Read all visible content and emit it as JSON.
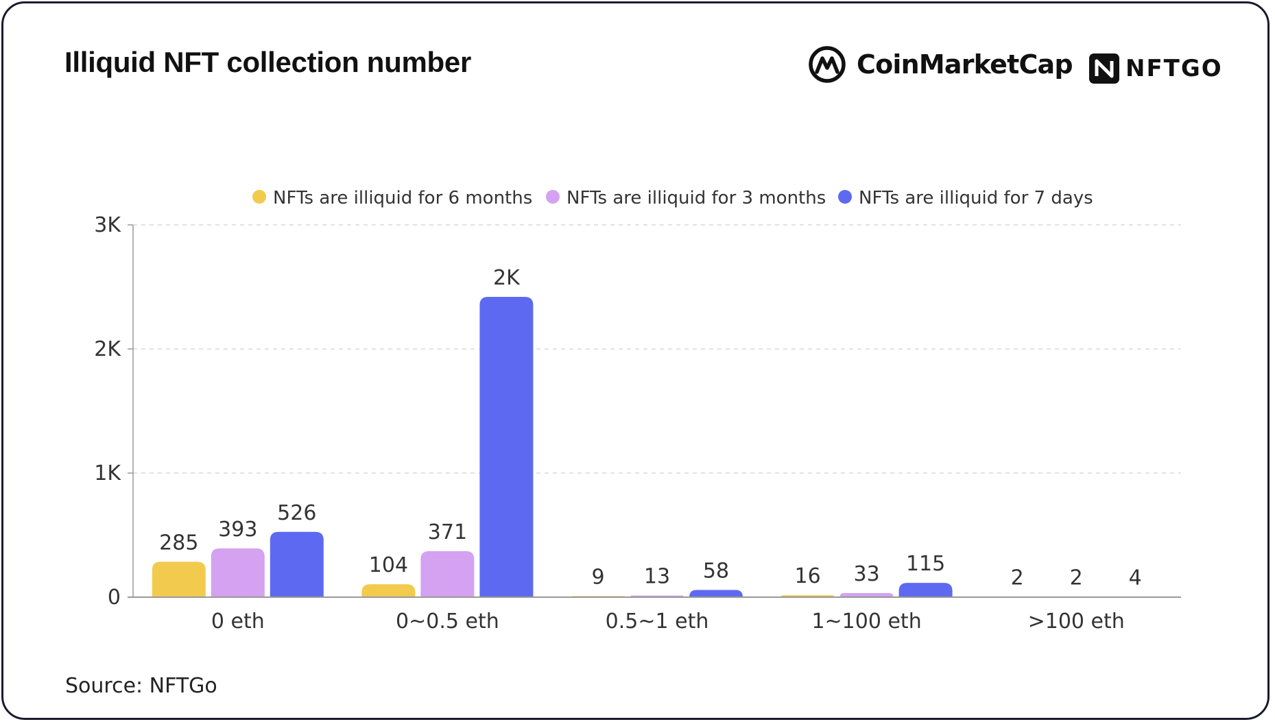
{
  "header": {
    "title": "Illiquid NFT collection number",
    "brand_primary": "CoinMarketCap",
    "brand_secondary": "NFTGO"
  },
  "footer": {
    "source": "Source: NFTGo"
  },
  "colors": {
    "series_6m": "#F2CB4E",
    "series_3m": "#D4A2F0",
    "series_7d": "#5E69F1",
    "axis": "#999999",
    "grid": "#d8d8d8",
    "text": "#333333"
  },
  "chart_data": {
    "type": "bar",
    "title": "Illiquid NFT collection number",
    "xlabel": "",
    "ylabel": "",
    "ylim": [
      0,
      3000
    ],
    "y_ticks": [
      0,
      1000,
      2000,
      3000
    ],
    "y_tick_labels": [
      "0",
      "1K",
      "2K",
      "3K"
    ],
    "grid": true,
    "legend_position": "top-center",
    "categories": [
      "0 eth",
      "0~0.5 eth",
      "0.5~1 eth",
      "1~100 eth",
      ">100 eth"
    ],
    "series": [
      {
        "name": "NFTs are illiquid for 6 months",
        "color": "#F2CB4E",
        "values": [
          285,
          104,
          9,
          16,
          2
        ],
        "labels": [
          "285",
          "104",
          "9",
          "16",
          "2"
        ]
      },
      {
        "name": "NFTs are illiquid for 3 months",
        "color": "#D4A2F0",
        "values": [
          393,
          371,
          13,
          33,
          2
        ],
        "labels": [
          "393",
          "371",
          "13",
          "33",
          "2"
        ]
      },
      {
        "name": "NFTs are illiquid for 7 days",
        "color": "#5E69F1",
        "values": [
          526,
          2420,
          58,
          115,
          4
        ],
        "labels": [
          "526",
          "2K",
          "58",
          "115",
          "4"
        ]
      }
    ]
  }
}
